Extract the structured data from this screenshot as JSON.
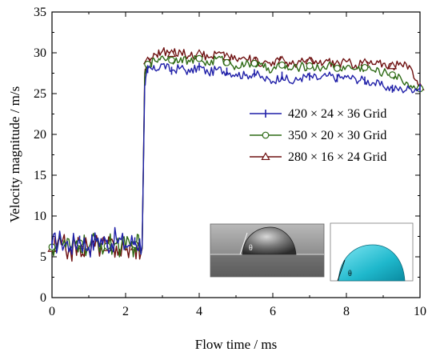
{
  "chart_data": {
    "type": "line",
    "xlabel": "Flow time / ms",
    "ylabel": "Velocity magnitude / m/s",
    "xlim": [
      0,
      10
    ],
    "ylim": [
      0,
      35
    ],
    "xticks": [
      0,
      2,
      4,
      6,
      8,
      10
    ],
    "yticks": [
      0,
      5,
      10,
      15,
      20,
      25,
      30,
      35
    ],
    "legend_position": "right-middle",
    "grid": false,
    "series": [
      {
        "name": "420 × 24 × 36 Grid",
        "color": "#1f1fa8",
        "marker": "vertical-bar",
        "x": [
          0.0,
          0.25,
          0.5,
          0.75,
          1.0,
          1.25,
          1.5,
          1.75,
          2.0,
          2.25,
          2.45,
          2.52,
          2.6,
          2.8,
          3.0,
          3.25,
          3.5,
          3.75,
          4.0,
          4.25,
          4.5,
          4.75,
          5.0,
          5.25,
          5.5,
          5.75,
          6.0,
          6.25,
          6.5,
          6.75,
          7.0,
          7.25,
          7.5,
          7.75,
          8.0,
          8.25,
          8.5,
          8.75,
          9.0,
          9.25,
          9.5,
          9.75,
          10.0
        ],
        "y": [
          6.5,
          7.0,
          6.3,
          7.1,
          6.2,
          7.3,
          6.6,
          7.2,
          6.4,
          6.9,
          6.5,
          26.0,
          28.0,
          27.9,
          28.6,
          27.8,
          28.2,
          27.6,
          28.3,
          27.5,
          28.0,
          27.7,
          27.4,
          27.2,
          27.5,
          26.8,
          26.5,
          27.2,
          26.3,
          26.9,
          27.1,
          26.8,
          27.2,
          26.9,
          27.0,
          26.8,
          26.6,
          26.3,
          25.9,
          25.6,
          25.5,
          25.6,
          25.7
        ]
      },
      {
        "name": "350 × 20 × 30 Grid",
        "color": "#2d6a14",
        "marker": "circle",
        "x": [
          0.0,
          0.25,
          0.5,
          0.75,
          1.0,
          1.25,
          1.5,
          1.75,
          2.0,
          2.25,
          2.45,
          2.52,
          2.6,
          2.8,
          3.0,
          3.25,
          3.5,
          3.75,
          4.0,
          4.25,
          4.5,
          4.75,
          5.0,
          5.25,
          5.5,
          5.75,
          6.0,
          6.25,
          6.5,
          6.75,
          7.0,
          7.25,
          7.5,
          7.75,
          8.0,
          8.25,
          8.5,
          8.75,
          9.0,
          9.25,
          9.5,
          9.75,
          10.0
        ],
        "y": [
          6.2,
          6.8,
          5.9,
          6.7,
          6.1,
          6.9,
          6.3,
          6.6,
          6.0,
          6.5,
          6.2,
          27.0,
          28.6,
          29.0,
          29.6,
          29.1,
          29.4,
          28.9,
          29.3,
          28.6,
          29.4,
          28.8,
          28.4,
          28.5,
          28.7,
          28.2,
          28.0,
          28.5,
          27.9,
          28.3,
          28.4,
          28.1,
          28.5,
          28.1,
          28.3,
          28.0,
          28.2,
          27.8,
          27.6,
          27.3,
          26.7,
          26.0,
          25.6
        ]
      },
      {
        "name": "280 × 16 × 24 Grid",
        "color": "#6e1010",
        "marker": "triangle",
        "x": [
          0.0,
          0.25,
          0.5,
          0.75,
          1.0,
          1.25,
          1.5,
          1.75,
          2.0,
          2.25,
          2.45,
          2.52,
          2.6,
          2.8,
          3.0,
          3.25,
          3.5,
          3.75,
          4.0,
          4.25,
          4.5,
          4.75,
          5.0,
          5.25,
          5.5,
          5.75,
          6.0,
          6.25,
          6.5,
          6.75,
          7.0,
          7.25,
          7.5,
          7.75,
          8.0,
          8.25,
          8.5,
          8.75,
          9.0,
          9.25,
          9.5,
          9.75,
          10.0
        ],
        "y": [
          6.0,
          6.5,
          5.8,
          6.4,
          5.9,
          6.6,
          6.1,
          6.3,
          5.8,
          6.2,
          6.0,
          27.5,
          29.0,
          29.8,
          30.2,
          29.9,
          30.1,
          29.6,
          29.9,
          29.4,
          30.0,
          29.5,
          29.2,
          29.3,
          29.0,
          28.8,
          28.9,
          29.1,
          28.6,
          28.9,
          29.0,
          28.7,
          29.0,
          28.6,
          28.9,
          28.5,
          28.8,
          28.6,
          28.7,
          28.4,
          28.5,
          28.2,
          25.8
        ]
      }
    ]
  },
  "insets": {
    "photo_label": "θ",
    "sim_label": "θ"
  }
}
